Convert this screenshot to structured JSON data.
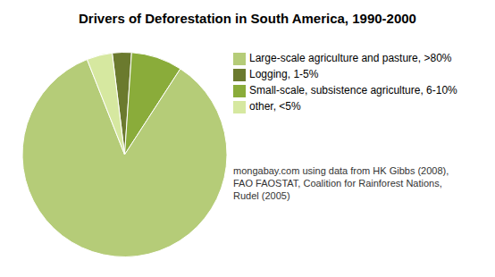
{
  "chart_data": {
    "type": "pie",
    "title": "Drivers of Deforestation in South America, 1990-2000",
    "categories": [
      "Logging, 1-5%",
      "Small-scale, subsistence agriculture, 6-10%",
      "Large-scale agriculture and pasture, >80%",
      "other, <5%"
    ],
    "values": [
      3,
      8,
      84,
      4
    ],
    "colors": [
      "#6b7a2e",
      "#8aac3a",
      "#b5cc78",
      "#d6e8a0"
    ],
    "legend": "right",
    "annotations": [
      "mongabay.com using data from HK Gibbs (2008),\nFAO FAOSTAT, Coalition for Rainforest Nations,\nRudel (2005)"
    ]
  }
}
